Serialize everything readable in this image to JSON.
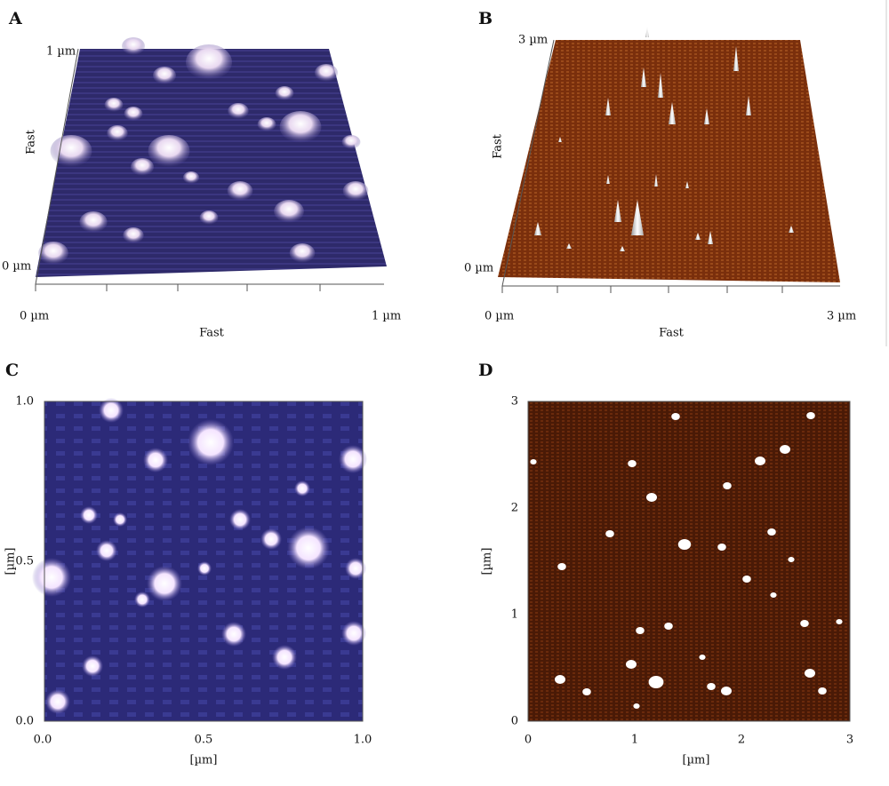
{
  "panels": [
    {
      "label": "A",
      "y_ticks": [
        "1 µm",
        "0 µm"
      ],
      "y_label": "Fast",
      "x_ticks": [
        "0 µm",
        "1 µm"
      ],
      "x_label": "Fast"
    },
    {
      "label": "B",
      "y_ticks": [
        "3 µm",
        "0 µm"
      ],
      "y_label": "Fast",
      "x_ticks": [
        "0 µm",
        "3 µm"
      ],
      "x_label": "Fast"
    },
    {
      "label": "C",
      "y_ticks": [
        "1.0",
        "0.5",
        "0.0"
      ],
      "y_label": "[µm]",
      "x_ticks": [
        "0.0",
        "0.5",
        "1.0"
      ],
      "x_label": "[µm]"
    },
    {
      "label": "D",
      "y_ticks": [
        3,
        2,
        1,
        0
      ],
      "y_label": "[µm]",
      "x_ticks": [
        0,
        1,
        2,
        3
      ],
      "x_label": "[µm]"
    }
  ]
}
